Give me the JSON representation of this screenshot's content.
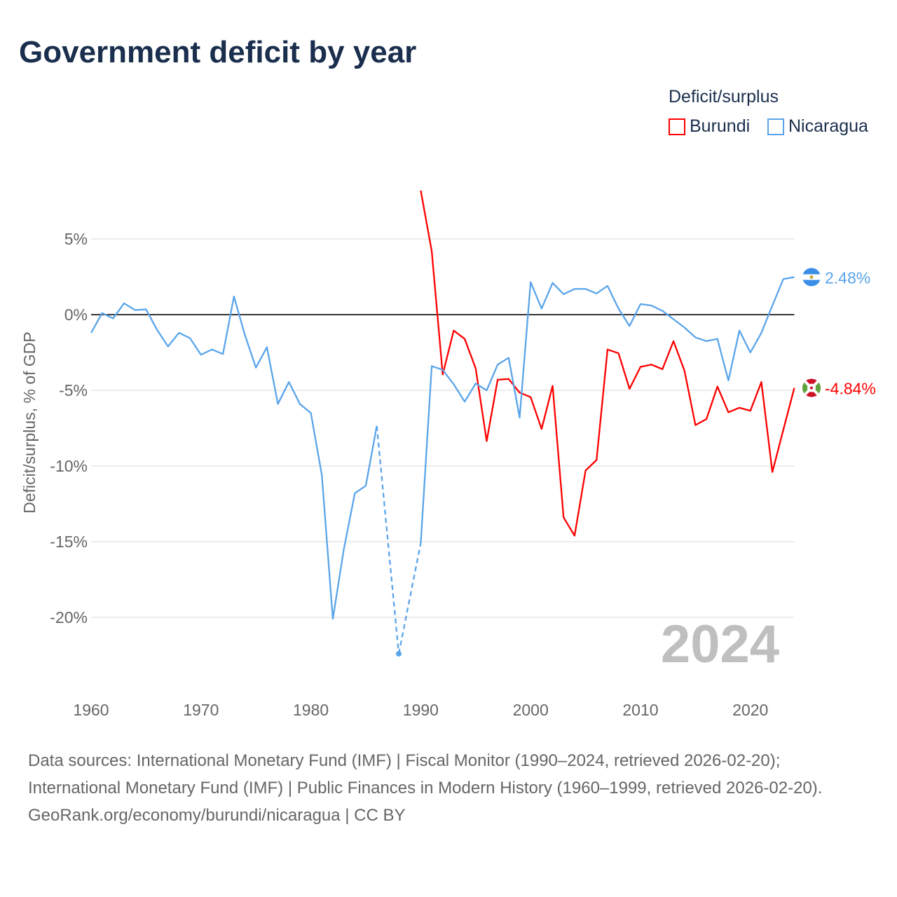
{
  "title": "Government deficit by year",
  "legend": {
    "title": "Deficit/surplus",
    "items": [
      {
        "label": "Burundi",
        "color": "#ff0000"
      },
      {
        "label": "Nicaragua",
        "color": "#5aa5ea"
      }
    ]
  },
  "year_watermark": "2024",
  "end_labels": {
    "burundi": "-4.84%",
    "nicaragua": "2.48%"
  },
  "footer": {
    "sources": "Data sources: International Monetary Fund (IMF) | Fiscal Monitor (1990–2024, retrieved 2026-02-20); International Monetary Fund (IMF) | Public Finances in Modern History (1960–1999, retrieved 2026-02-20).",
    "credit": "GeoRank.org/economy/burundi/nicaragua | CC BY"
  },
  "chart_data": {
    "type": "line",
    "title": "Government deficit by year",
    "xlabel": "",
    "ylabel": "Deficit/surplus, % of GDP",
    "xlim": [
      1960,
      2024
    ],
    "ylim": [
      -24,
      9
    ],
    "x_ticks": [
      1960,
      1970,
      1980,
      1990,
      2000,
      2010,
      2020
    ],
    "x_tick_labels": [
      "1960",
      "1970",
      "1980",
      "1990",
      "2000",
      "2010",
      "2020"
    ],
    "y_ticks": [
      5,
      0,
      -5,
      -10,
      -15,
      -20
    ],
    "y_tick_labels": [
      "5%",
      "0%",
      "-5%",
      "-10%",
      "-15%",
      "-20%"
    ],
    "grid": true,
    "legend_position": "top-right",
    "series": [
      {
        "name": "Burundi",
        "color": "#ff0000",
        "x": [
          1990,
          1991,
          1992,
          1993,
          1994,
          1995,
          1996,
          1997,
          1998,
          1999,
          2000,
          2001,
          2002,
          2003,
          2004,
          2005,
          2006,
          2007,
          2008,
          2009,
          2010,
          2011,
          2012,
          2013,
          2014,
          2015,
          2016,
          2017,
          2018,
          2019,
          2020,
          2021,
          2022,
          2023,
          2024
        ],
        "y": [
          8.2,
          4.2,
          -3.95,
          -1.05,
          -1.6,
          -3.55,
          -8.35,
          -4.3,
          -4.25,
          -5.15,
          -5.45,
          -7.55,
          -4.7,
          -13.4,
          -14.6,
          -10.3,
          -9.6,
          -2.3,
          -2.55,
          -4.9,
          -3.45,
          -3.3,
          -3.6,
          -1.75,
          -3.7,
          -7.3,
          -6.9,
          -4.75,
          -6.45,
          -6.15,
          -6.35,
          -4.45,
          -10.4,
          -7.6,
          -4.84
        ]
      },
      {
        "name": "Nicaragua",
        "color": "#5aa5ea",
        "x": [
          1960,
          1961,
          1962,
          1963,
          1964,
          1965,
          1966,
          1967,
          1968,
          1969,
          1970,
          1971,
          1972,
          1973,
          1974,
          1975,
          1976,
          1977,
          1978,
          1979,
          1980,
          1981,
          1982,
          1983,
          1984,
          1985,
          1986,
          1988,
          1990,
          1991,
          1992,
          1993,
          1994,
          1995,
          1996,
          1997,
          1998,
          1999,
          2000,
          2001,
          2002,
          2003,
          2004,
          2005,
          2006,
          2007,
          2008,
          2009,
          2010,
          2011,
          2012,
          2013,
          2014,
          2015,
          2016,
          2017,
          2018,
          2019,
          2020,
          2021,
          2022,
          2023,
          2024
        ],
        "y": [
          -1.2,
          0.1,
          -0.25,
          0.75,
          0.3,
          0.35,
          -1.0,
          -2.1,
          -1.2,
          -1.55,
          -2.65,
          -2.3,
          -2.6,
          1.2,
          -1.35,
          -3.5,
          -2.15,
          -5.9,
          -4.45,
          -5.9,
          -6.5,
          -10.6,
          -20.1,
          -15.5,
          -11.8,
          -11.3,
          -7.35,
          -22.4,
          -15.1,
          -3.4,
          -3.65,
          -4.6,
          -5.75,
          -4.55,
          -5.0,
          -3.3,
          -2.85,
          -6.8,
          2.15,
          0.4,
          2.1,
          1.35,
          1.7,
          1.7,
          1.4,
          1.9,
          0.4,
          -0.75,
          0.7,
          0.6,
          0.25,
          -0.3,
          -0.85,
          -1.5,
          -1.75,
          -1.6,
          -4.35,
          -1.05,
          -2.5,
          -1.2,
          0.6,
          2.35,
          2.48
        ]
      }
    ]
  }
}
